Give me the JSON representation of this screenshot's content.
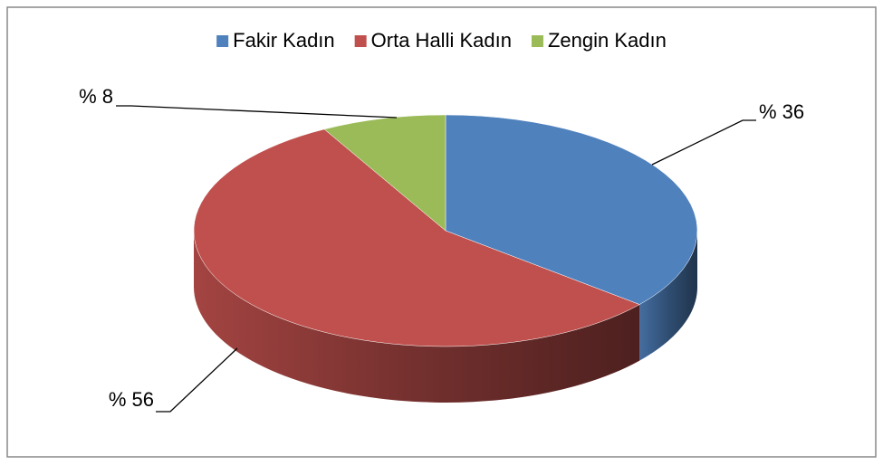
{
  "chart_data": {
    "type": "pie",
    "categories": [
      "Fakir Kadın",
      "Orta Halli Kadın",
      "Zengin Kadın"
    ],
    "values": [
      36,
      56,
      8
    ],
    "value_labels": [
      "% 36",
      "% 56",
      "% 8"
    ],
    "colors": [
      "#4f81bd",
      "#c0504d",
      "#9bbb59"
    ],
    "legend": "top"
  }
}
